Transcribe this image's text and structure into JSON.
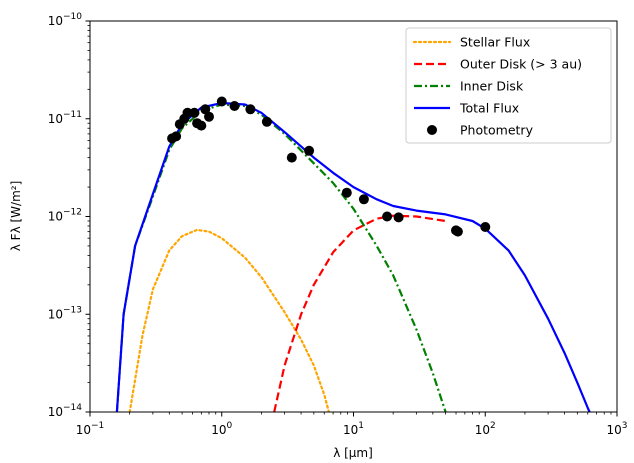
{
  "chart_data": {
    "type": "line",
    "xlabel": "λ [μm]",
    "ylabel": "λ Fλ [W/m²]",
    "xscale": "log",
    "yscale": "log",
    "xlim": [
      0.1,
      1000
    ],
    "ylim": [
      1e-14,
      1e-10
    ],
    "x_ticks": [
      0.1,
      1,
      10,
      100,
      1000
    ],
    "x_tick_labels": [
      {
        "base": "10",
        "exp": "−1"
      },
      {
        "base": "10",
        "exp": "0"
      },
      {
        "base": "10",
        "exp": "1"
      },
      {
        "base": "10",
        "exp": "2"
      },
      {
        "base": "10",
        "exp": "3"
      }
    ],
    "y_ticks": [
      1e-14,
      1e-13,
      1e-12,
      1e-11,
      1e-10
    ],
    "y_tick_labels": [
      {
        "base": "10",
        "exp": "−14"
      },
      {
        "base": "10",
        "exp": "−13"
      },
      {
        "base": "10",
        "exp": "−12"
      },
      {
        "base": "10",
        "exp": "−11"
      },
      {
        "base": "10",
        "exp": "−10"
      }
    ],
    "grid": false,
    "legend_position": "top-right",
    "series": [
      {
        "name": "Stellar Flux",
        "style": "dotted",
        "color": "#ffa500",
        "points": [
          [
            0.2,
            1e-14
          ],
          [
            0.25,
            6e-14
          ],
          [
            0.3,
            1.8e-13
          ],
          [
            0.4,
            4.5e-13
          ],
          [
            0.5,
            6.3e-13
          ],
          [
            0.65,
            7.3e-13
          ],
          [
            0.8,
            7e-13
          ],
          [
            1,
            6e-13
          ],
          [
            1.5,
            3.8e-13
          ],
          [
            2,
            2.4e-13
          ],
          [
            3,
            1.05e-13
          ],
          [
            4,
            5.5e-14
          ],
          [
            5,
            3e-14
          ],
          [
            6,
            1.5e-14
          ],
          [
            6.5,
            1e-14
          ]
        ]
      },
      {
        "name": "Outer Disk (> 3 au)",
        "style": "dashed",
        "color": "#ff0000",
        "points": [
          [
            2.5,
            1e-14
          ],
          [
            3,
            3e-14
          ],
          [
            4,
            1e-13
          ],
          [
            5,
            2e-13
          ],
          [
            7,
            4.3e-13
          ],
          [
            10,
            7.2e-13
          ],
          [
            15,
            9.5e-13
          ],
          [
            20,
            1.02e-12
          ],
          [
            30,
            1e-12
          ],
          [
            50,
            9e-13
          ]
        ]
      },
      {
        "name": "Inner Disk",
        "style": "dashdot",
        "color": "#008000",
        "points": [
          [
            0.16,
            1e-14
          ],
          [
            0.18,
            1e-13
          ],
          [
            0.22,
            5e-13
          ],
          [
            0.3,
            1.6e-12
          ],
          [
            0.4,
            4.8e-12
          ],
          [
            0.5,
            8e-12
          ],
          [
            0.7,
            1.2e-11
          ],
          [
            1,
            1.4e-11
          ],
          [
            1.5,
            1.35e-11
          ],
          [
            2,
            1.1e-11
          ],
          [
            3,
            7e-12
          ],
          [
            5,
            3.5e-12
          ],
          [
            7,
            2.2e-12
          ],
          [
            10,
            1.2e-12
          ],
          [
            15,
            5e-13
          ],
          [
            20,
            2.5e-13
          ],
          [
            30,
            7e-14
          ],
          [
            40,
            2.5e-14
          ],
          [
            50,
            1e-14
          ]
        ]
      },
      {
        "name": "Total Flux",
        "style": "solid",
        "color": "#0000ff",
        "points": [
          [
            0.16,
            1e-14
          ],
          [
            0.18,
            1e-13
          ],
          [
            0.22,
            5e-13
          ],
          [
            0.3,
            1.7e-12
          ],
          [
            0.4,
            5.2e-12
          ],
          [
            0.5,
            8.8e-12
          ],
          [
            0.7,
            1.3e-11
          ],
          [
            1,
            1.45e-11
          ],
          [
            1.5,
            1.4e-11
          ],
          [
            2,
            1.15e-11
          ],
          [
            3,
            7.3e-12
          ],
          [
            5,
            4e-12
          ],
          [
            7,
            2.8e-12
          ],
          [
            10,
            2e-12
          ],
          [
            15,
            1.5e-12
          ],
          [
            20,
            1.28e-12
          ],
          [
            30,
            1.15e-12
          ],
          [
            50,
            1.05e-12
          ],
          [
            80,
            9e-13
          ],
          [
            100,
            7.5e-13
          ],
          [
            150,
            4.5e-13
          ],
          [
            200,
            2.5e-13
          ],
          [
            300,
            9e-14
          ],
          [
            400,
            4e-14
          ],
          [
            500,
            2e-14
          ],
          [
            600,
            1.1e-14
          ],
          [
            620,
            1e-14
          ]
        ]
      }
    ],
    "photometry": {
      "name": "Photometry",
      "color": "#000000",
      "points": [
        [
          0.42,
          6.3e-12
        ],
        [
          0.45,
          6.6e-12
        ],
        [
          0.48,
          8.8e-12
        ],
        [
          0.52,
          1e-11
        ],
        [
          0.55,
          1.15e-11
        ],
        [
          0.62,
          1.15e-11
        ],
        [
          0.65,
          9e-12
        ],
        [
          0.7,
          8.5e-12
        ],
        [
          0.75,
          1.25e-11
        ],
        [
          0.8,
          1.05e-11
        ],
        [
          1,
          1.5e-11
        ],
        [
          1.25,
          1.35e-11
        ],
        [
          1.65,
          1.25e-11
        ],
        [
          2.2,
          9.3e-12
        ],
        [
          3.4,
          4e-12
        ],
        [
          4.6,
          4.7e-12
        ],
        [
          8.9,
          1.75e-12
        ],
        [
          12,
          1.5e-12
        ],
        [
          18,
          1e-12
        ],
        [
          22,
          9.8e-13
        ],
        [
          60,
          7.2e-13
        ],
        [
          62,
          7e-13
        ],
        [
          100,
          7.8e-13
        ]
      ]
    }
  }
}
